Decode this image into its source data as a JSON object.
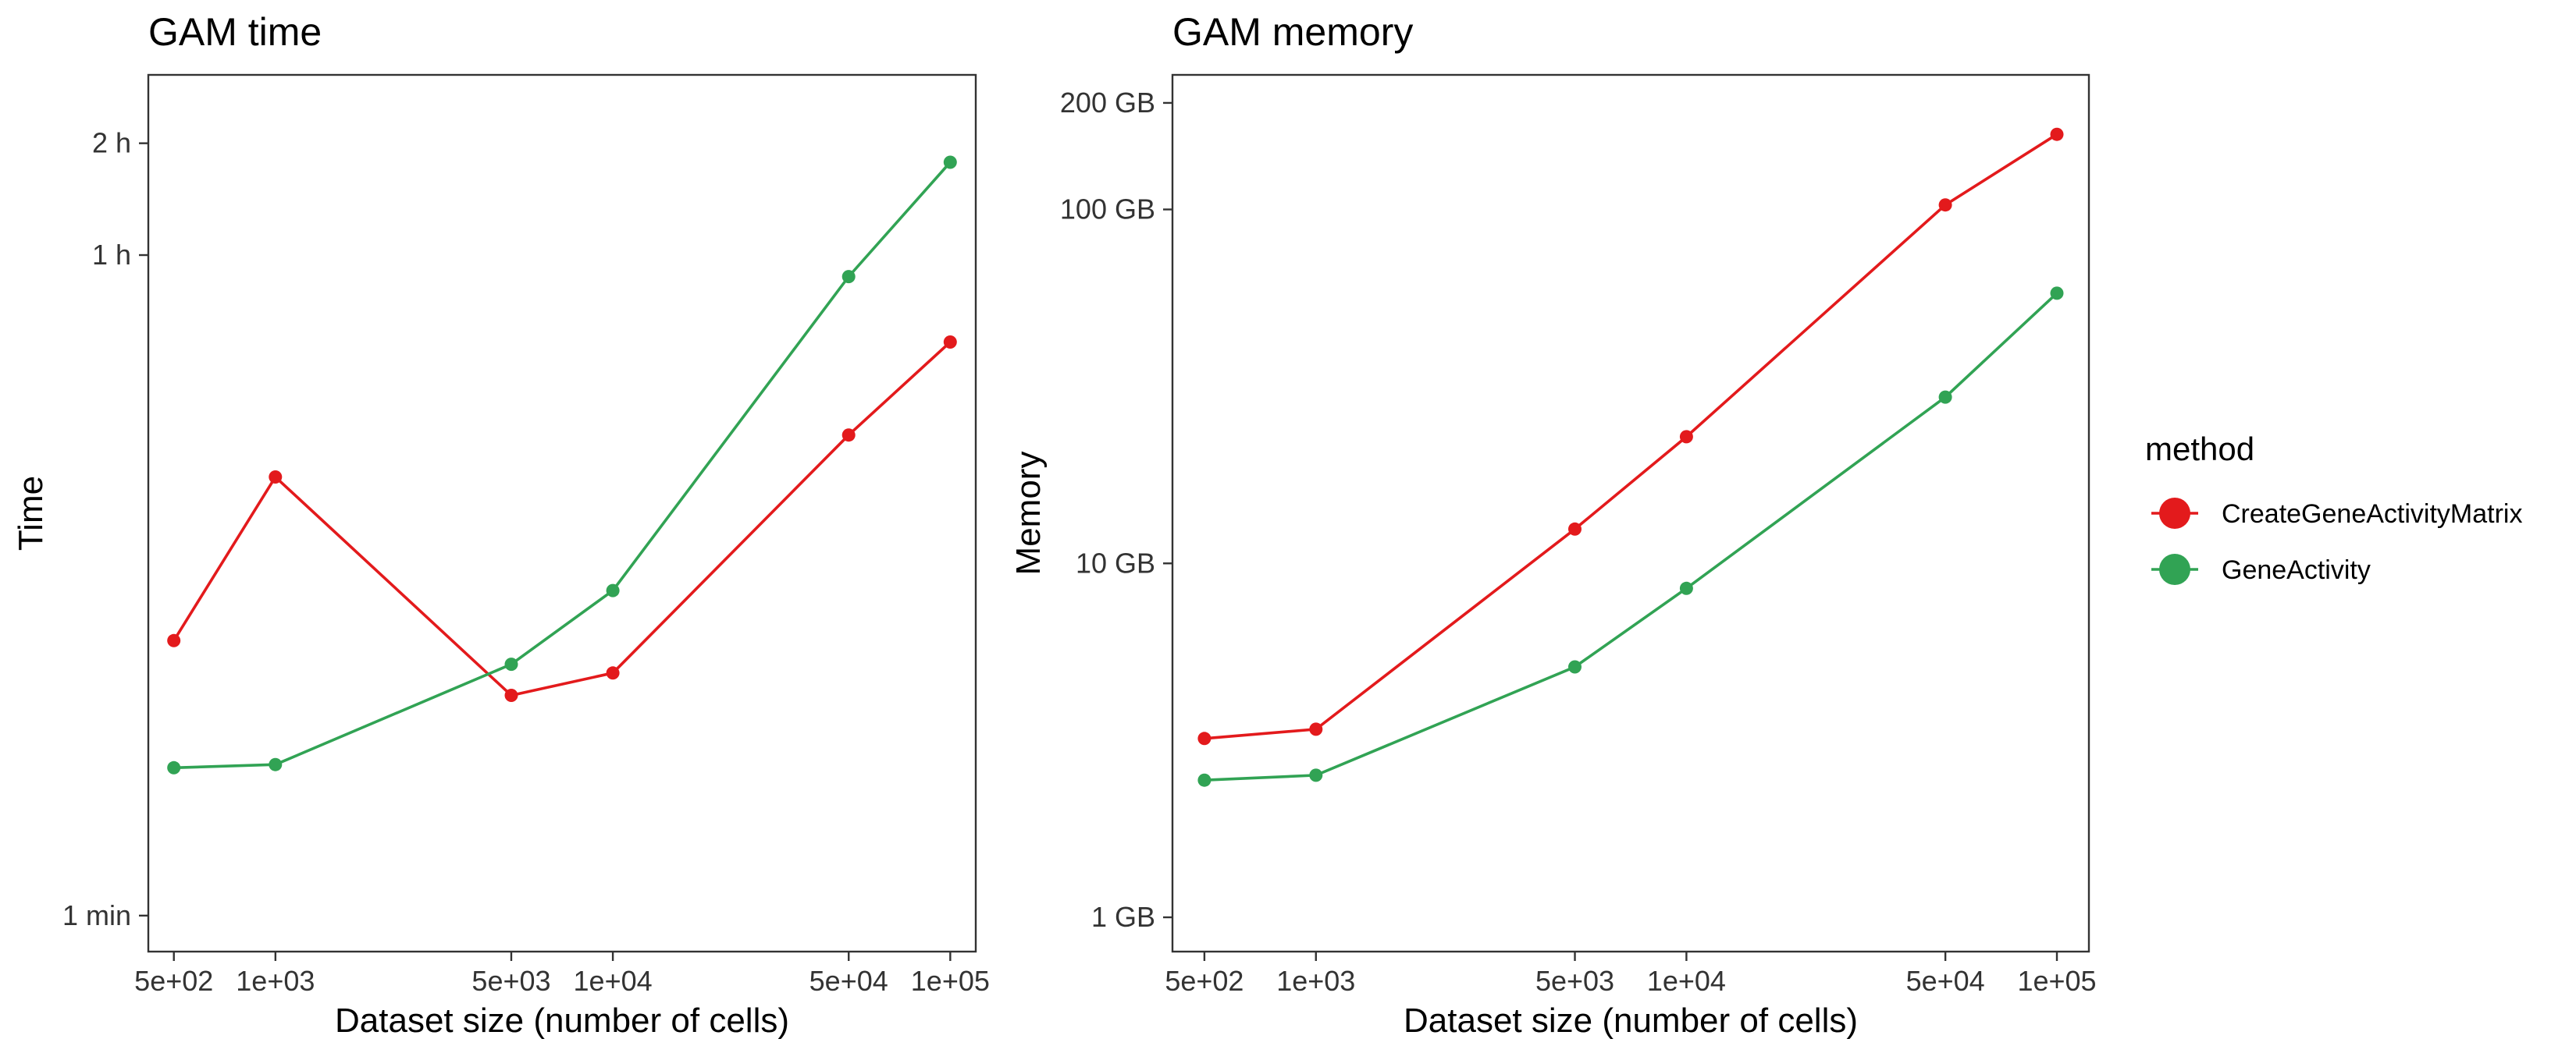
{
  "chart_data": [
    {
      "type": "line",
      "title": "GAM time",
      "xlabel": "Dataset size (number of cells)",
      "ylabel": "Time",
      "x_scale": "log",
      "y_scale": "log",
      "x": [
        500,
        1000,
        5000,
        10000,
        50000,
        100000
      ],
      "xticks": [
        500,
        1000,
        5000,
        10000,
        50000,
        100000
      ],
      "xtick_labels": [
        "5e+02",
        "1e+03",
        "5e+03",
        "1e+04",
        "5e+04",
        "1e+05"
      ],
      "xlim": [
        420,
        119000
      ],
      "yticks": [
        60,
        3600,
        7200
      ],
      "ytick_labels": [
        "1 min",
        "1 h",
        "2 h"
      ],
      "ylim": [
        48,
        11000
      ],
      "grid": false,
      "series": [
        {
          "name": "CreateGeneActivityMatrix",
          "color": "#e31a1c",
          "values": [
            330,
            910,
            235,
            270,
            1180,
            2100
          ]
        },
        {
          "name": "GeneActivity",
          "color": "#31a354",
          "values": [
            150,
            153,
            285,
            450,
            3150,
            6400
          ]
        }
      ]
    },
    {
      "type": "line",
      "title": "GAM memory",
      "xlabel": "Dataset size (number of cells)",
      "ylabel": "Memory",
      "x_scale": "log",
      "y_scale": "log",
      "x": [
        500,
        1000,
        5000,
        10000,
        50000,
        100000
      ],
      "xticks": [
        500,
        1000,
        5000,
        10000,
        50000,
        100000
      ],
      "xtick_labels": [
        "5e+02",
        "1e+03",
        "5e+03",
        "1e+04",
        "5e+04",
        "1e+05"
      ],
      "xlim": [
        410,
        122000
      ],
      "yticks": [
        1,
        10,
        100,
        200
      ],
      "ytick_labels": [
        "1 GB",
        "10 GB",
        "100 GB",
        "200 GB"
      ],
      "ylim": [
        0.8,
        240
      ],
      "grid": false,
      "series": [
        {
          "name": "CreateGeneActivityMatrix",
          "color": "#e31a1c",
          "values": [
            3.2,
            3.4,
            12.5,
            22.8,
            103,
            163
          ]
        },
        {
          "name": "GeneActivity",
          "color": "#31a354",
          "values": [
            2.44,
            2.52,
            5.1,
            8.5,
            29.5,
            58
          ]
        }
      ]
    }
  ],
  "legend": {
    "title": "method",
    "position": "right",
    "items": [
      {
        "label": "CreateGeneActivityMatrix",
        "color": "#e31a1c"
      },
      {
        "label": "GeneActivity",
        "color": "#31a354"
      }
    ]
  }
}
